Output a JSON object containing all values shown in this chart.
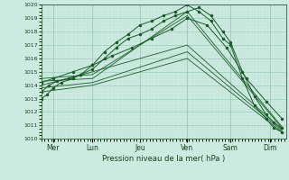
{
  "xlabel": "Pression niveau de la mer( hPa )",
  "bg_color": "#cceae0",
  "plot_bg": "#cceae0",
  "grid_major_color": "#99ccb8",
  "grid_minor_color": "#b8ddd0",
  "line_color": "#1a5c28",
  "ylim": [
    1010,
    1020
  ],
  "xlim": [
    0,
    6.2
  ],
  "yticks": [
    1010,
    1011,
    1012,
    1013,
    1014,
    1015,
    1016,
    1017,
    1018,
    1019,
    1020
  ],
  "day_labels": [
    "Mer",
    "Lun",
    "Jeu",
    "Ven",
    "Sam",
    "Dim"
  ],
  "day_positions": [
    0.3,
    1.3,
    2.5,
    3.7,
    4.8,
    5.8
  ],
  "lines": [
    {
      "x": [
        0.0,
        0.15,
        0.3,
        0.5,
        0.8,
        1.0,
        1.3,
        1.6,
        1.9,
        2.2,
        2.5,
        2.8,
        3.1,
        3.4,
        3.7,
        4.0,
        4.3,
        4.6,
        4.8,
        5.1,
        5.4,
        5.7,
        5.9,
        6.1
      ],
      "y": [
        1013.0,
        1013.3,
        1013.8,
        1014.2,
        1014.5,
        1014.8,
        1015.2,
        1016.0,
        1016.8,
        1017.5,
        1017.8,
        1018.2,
        1018.8,
        1019.2,
        1019.5,
        1019.8,
        1019.2,
        1018.0,
        1017.2,
        1015.0,
        1013.2,
        1011.8,
        1011.2,
        1010.8
      ]
    },
    {
      "x": [
        0.0,
        0.2,
        0.4,
        0.7,
        1.0,
        1.3,
        1.6,
        1.9,
        2.2,
        2.5,
        2.8,
        3.1,
        3.4,
        3.7,
        4.0,
        4.3,
        4.6,
        4.8,
        5.1,
        5.4,
        5.7,
        5.9,
        6.1
      ],
      "y": [
        1013.5,
        1014.0,
        1014.3,
        1014.5,
        1014.8,
        1015.5,
        1016.5,
        1017.2,
        1017.8,
        1018.5,
        1018.8,
        1019.2,
        1019.5,
        1020.0,
        1019.5,
        1018.8,
        1017.5,
        1017.0,
        1014.5,
        1012.5,
        1011.5,
        1010.8,
        1010.5
      ]
    },
    {
      "x": [
        0.0,
        0.3,
        0.8,
        1.3,
        1.8,
        2.3,
        2.8,
        3.3,
        3.7,
        4.2,
        4.7,
        5.2,
        5.7,
        6.1
      ],
      "y": [
        1014.2,
        1014.5,
        1015.0,
        1015.5,
        1016.2,
        1016.8,
        1017.5,
        1018.2,
        1019.0,
        1018.5,
        1016.8,
        1014.5,
        1012.8,
        1011.5
      ]
    },
    {
      "x": [
        0.0,
        1.3,
        3.7,
        6.1
      ],
      "y": [
        1014.5,
        1014.8,
        1019.2,
        1010.8
      ]
    },
    {
      "x": [
        0.0,
        1.3,
        3.7,
        6.1
      ],
      "y": [
        1014.3,
        1014.5,
        1019.5,
        1010.9
      ]
    },
    {
      "x": [
        0.0,
        1.3,
        3.7,
        6.1
      ],
      "y": [
        1014.0,
        1015.0,
        1017.0,
        1010.7
      ]
    },
    {
      "x": [
        0.0,
        1.3,
        3.7,
        6.1
      ],
      "y": [
        1013.8,
        1014.2,
        1016.5,
        1010.6
      ]
    },
    {
      "x": [
        0.0,
        1.3,
        3.7,
        6.1
      ],
      "y": [
        1013.5,
        1014.0,
        1016.0,
        1010.5
      ]
    }
  ]
}
